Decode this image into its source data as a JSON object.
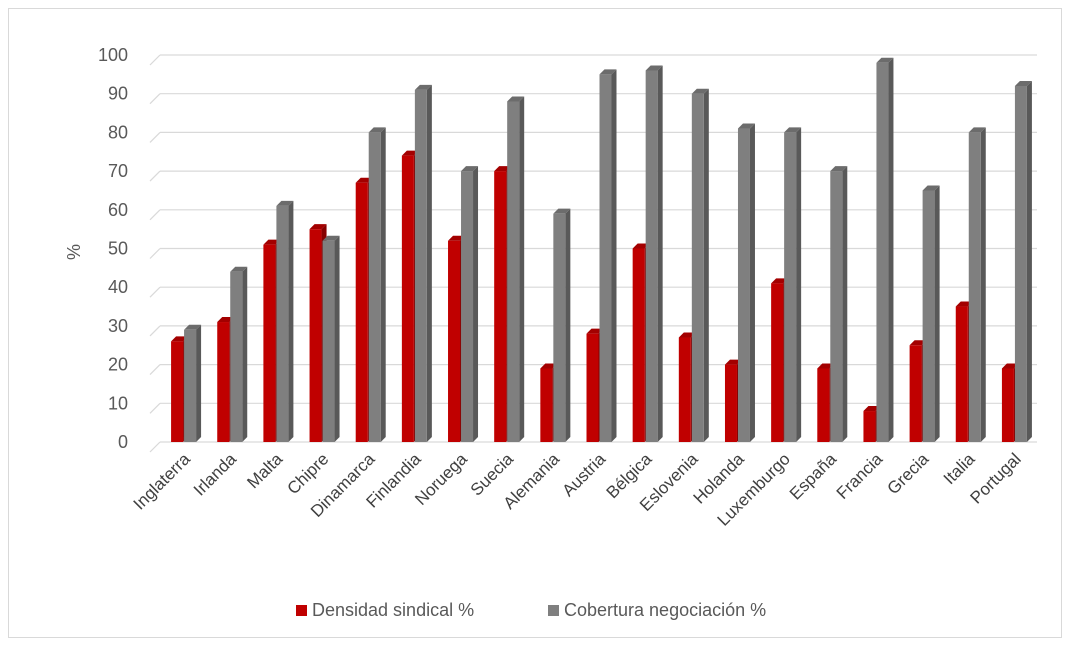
{
  "chart_data": {
    "type": "bar",
    "title": "",
    "xlabel": "",
    "ylabel": "%",
    "ylim": [
      0,
      100
    ],
    "yticks": [
      0,
      10,
      20,
      30,
      40,
      50,
      60,
      70,
      80,
      90,
      100
    ],
    "grid": true,
    "legend_position": "bottom",
    "categories": [
      "Inglaterra",
      "Irlanda",
      "Malta",
      "Chipre",
      "Dinamarca",
      "Finlandia",
      "Noruega",
      "Suecia",
      "Alemania",
      "Austria",
      "Bélgica",
      "Eslovenia",
      "Holanda",
      "Luxemburgo",
      "España",
      "Francia",
      "Grecia",
      "Italia",
      "Portugal"
    ],
    "series": [
      {
        "name": "Densidad sindical %",
        "color": "#c00000",
        "values": [
          26,
          31,
          51,
          55,
          67,
          74,
          52,
          70,
          19,
          28,
          50,
          27,
          20,
          41,
          19,
          8,
          25,
          35,
          19
        ]
      },
      {
        "name": "Cobertura negociación %",
        "color": "#7f7f7f",
        "values": [
          29,
          44,
          61,
          52,
          80,
          91,
          70,
          88,
          59,
          95,
          96,
          90,
          81,
          80,
          70,
          98,
          65,
          80,
          92
        ]
      }
    ]
  }
}
